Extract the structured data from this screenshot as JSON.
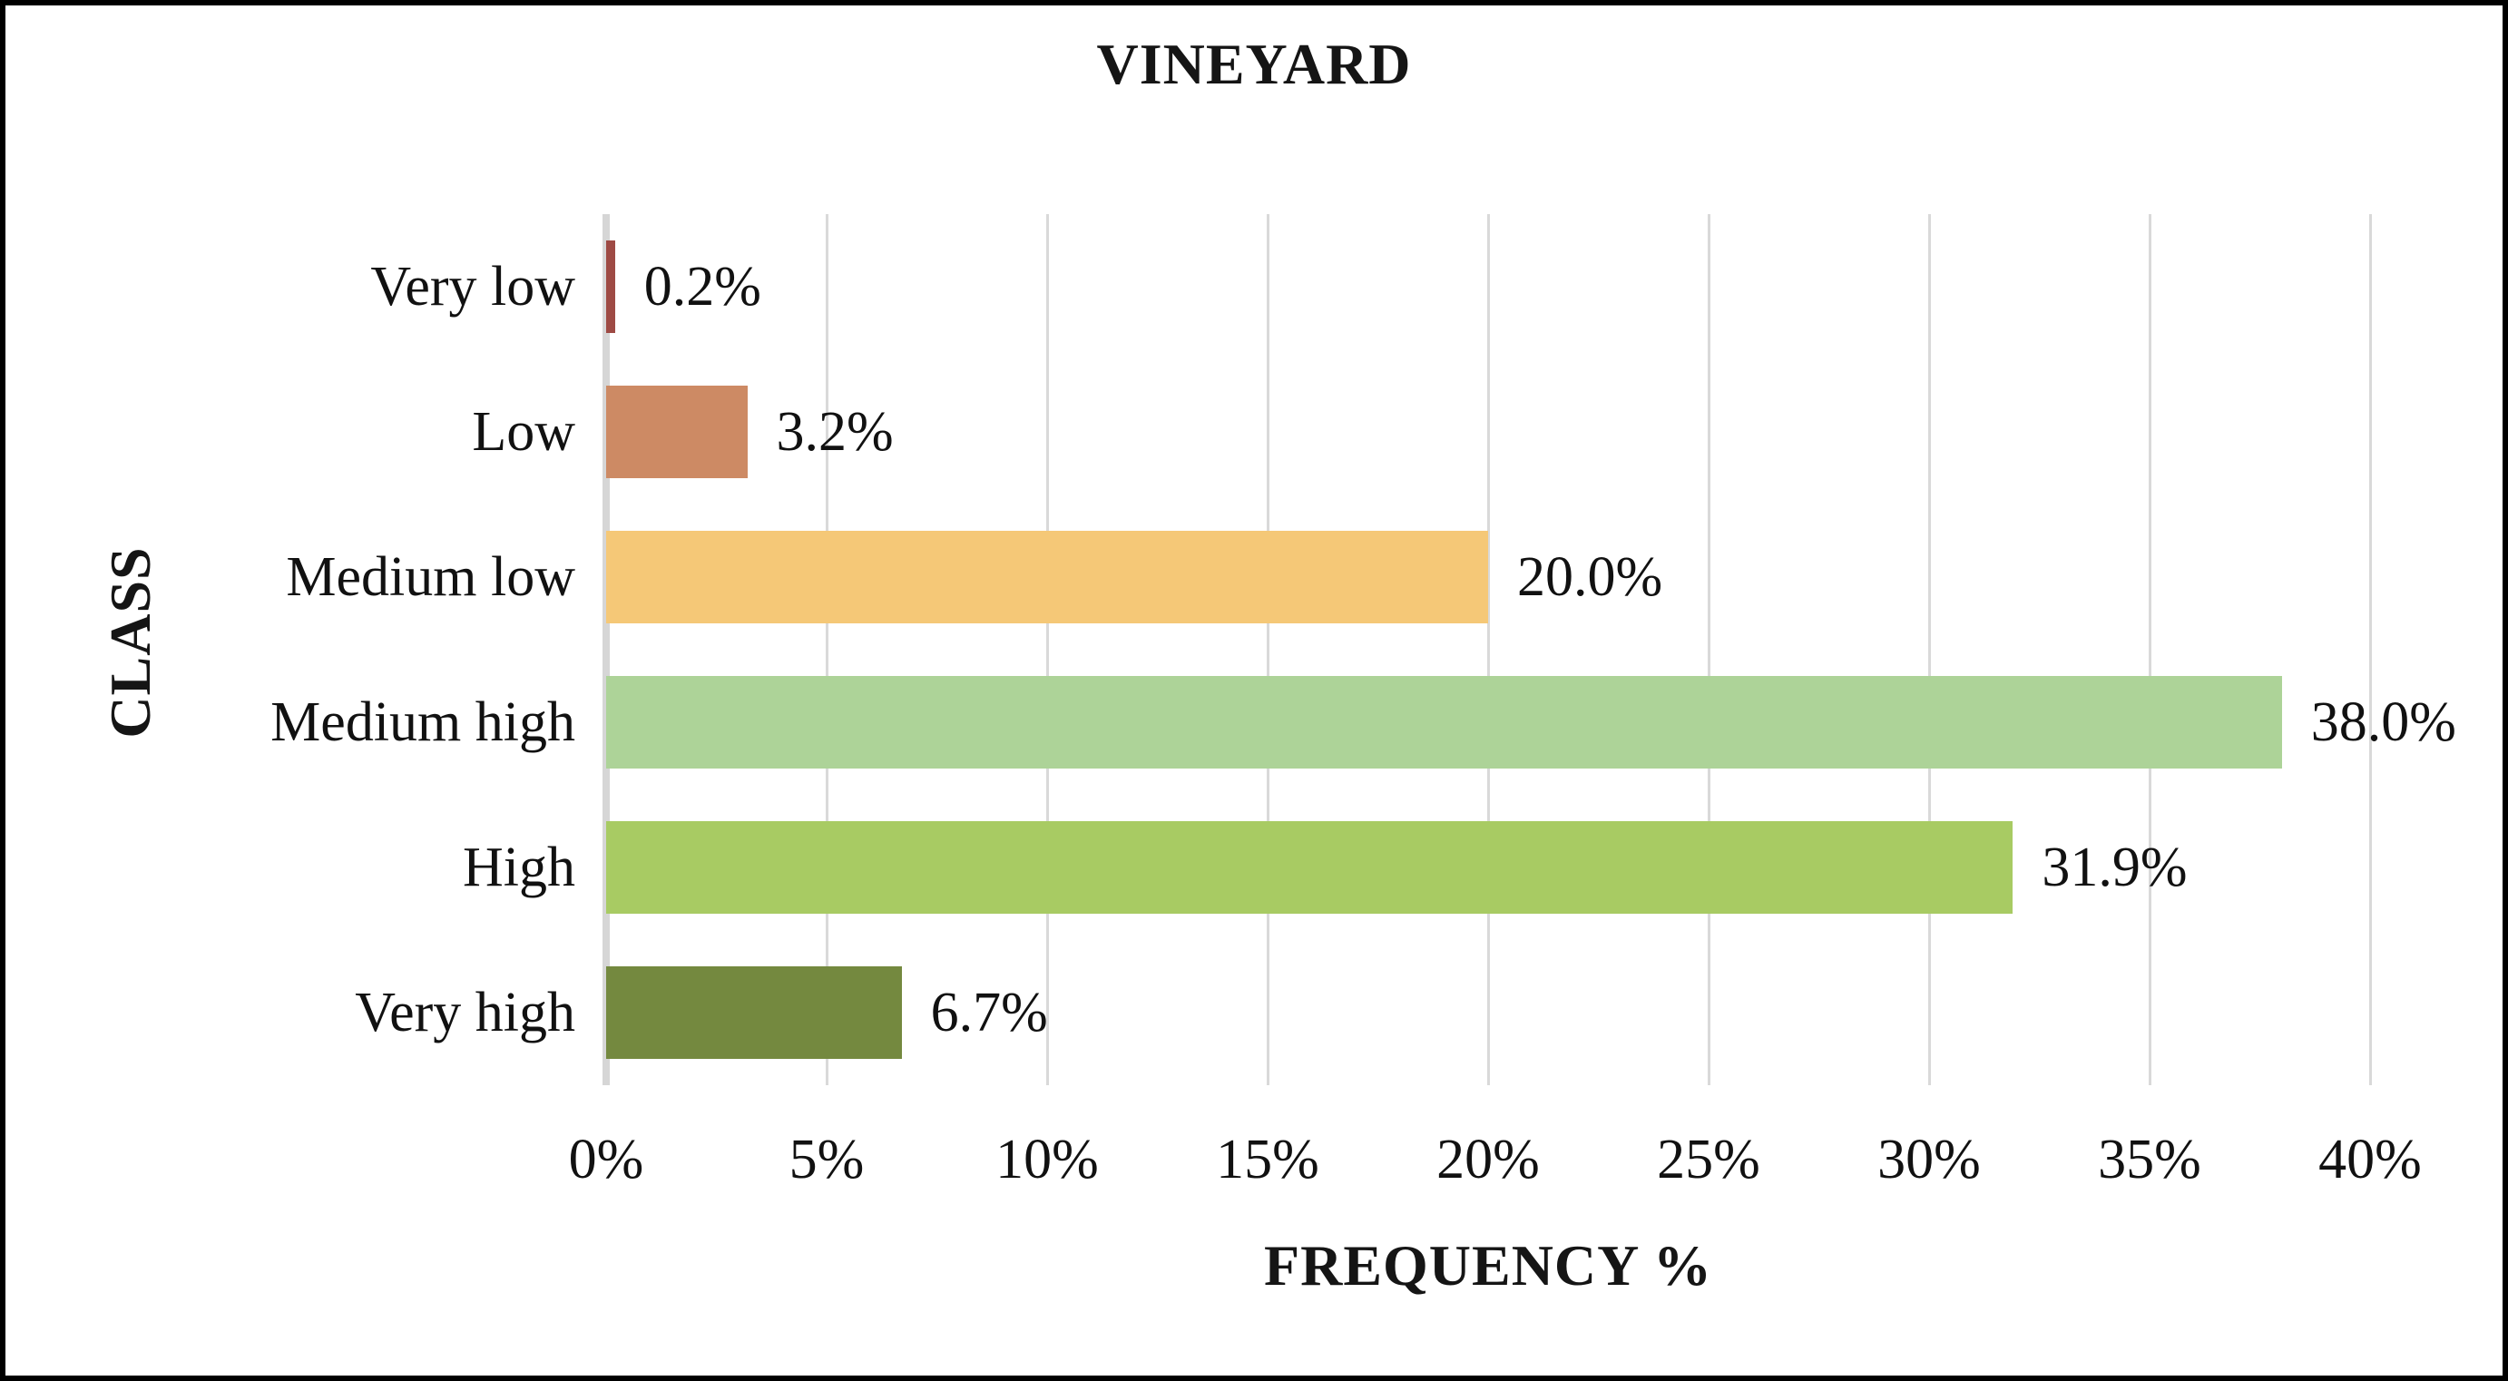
{
  "chart_data": {
    "type": "bar",
    "orientation": "horizontal",
    "title": "VINEYARD",
    "xlabel": "FREQUENCY %",
    "ylabel": "CLASS",
    "categories": [
      "Very low",
      "Low",
      "Medium low",
      "Medium high",
      "High",
      "Very high"
    ],
    "values": [
      0.2,
      3.2,
      20.0,
      38.0,
      31.9,
      6.7
    ],
    "value_labels": [
      "0.2%",
      "3.2%",
      "20.0%",
      "38.0%",
      "31.9%",
      "6.7%"
    ],
    "bar_colors": [
      "#9e4a44",
      "#cd8a64",
      "#f5c877",
      "#add398",
      "#a8cb63",
      "#74893f"
    ],
    "xlim": [
      0,
      40
    ],
    "xtick_values": [
      0,
      5,
      10,
      15,
      20,
      25,
      30,
      35,
      40
    ],
    "xtick_labels": [
      "0%",
      "5%",
      "10%",
      "15%",
      "20%",
      "25%",
      "30%",
      "35%",
      "40%"
    ],
    "grid": true,
    "legend": false,
    "gridline_color": "#d9d9d9",
    "axis_line_color": "#d6d6d6",
    "figure_border_color": "#000000",
    "background_color": "#ffffff"
  }
}
